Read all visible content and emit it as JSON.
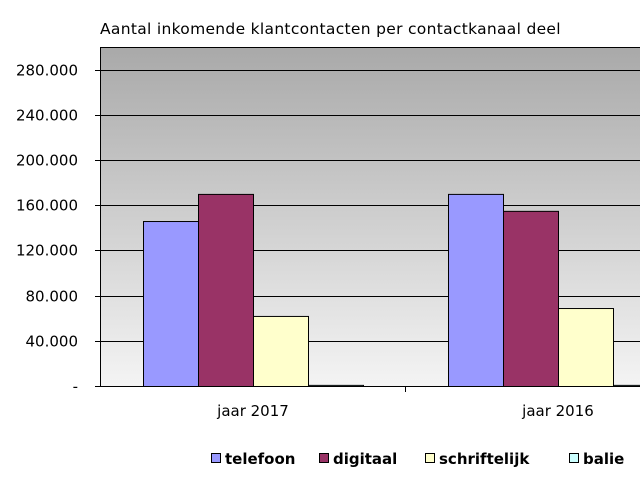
{
  "chart_data": {
    "type": "bar",
    "title": "Aantal inkomende klantcontacten per contactkanaal deel",
    "categories": [
      "jaar 2017",
      "jaar 2016"
    ],
    "series": [
      {
        "name": "telefoon",
        "color": "#9999ff",
        "values": [
          146000,
          170000
        ]
      },
      {
        "name": "digitaal",
        "color": "#993366",
        "values": [
          170000,
          155000
        ]
      },
      {
        "name": "schriftelijk",
        "color": "#ffffcc",
        "values": [
          62000,
          69000
        ]
      },
      {
        "name": "balie",
        "color": "#ccffff",
        "values": [
          1000,
          1000
        ]
      }
    ],
    "ylim": [
      0,
      300000
    ],
    "yticks": [
      {
        "value": 0,
        "label": "-"
      },
      {
        "value": 40000,
        "label": "40.000"
      },
      {
        "value": 80000,
        "label": "80.000"
      },
      {
        "value": 120000,
        "label": "120.000"
      },
      {
        "value": 160000,
        "label": "160.000"
      },
      {
        "value": 200000,
        "label": "200.000"
      },
      {
        "value": 240000,
        "label": "240.000"
      },
      {
        "value": 280000,
        "label": "280.000"
      }
    ],
    "grid": true,
    "legend_position": "bottom",
    "xlabel": "",
    "ylabel": ""
  }
}
